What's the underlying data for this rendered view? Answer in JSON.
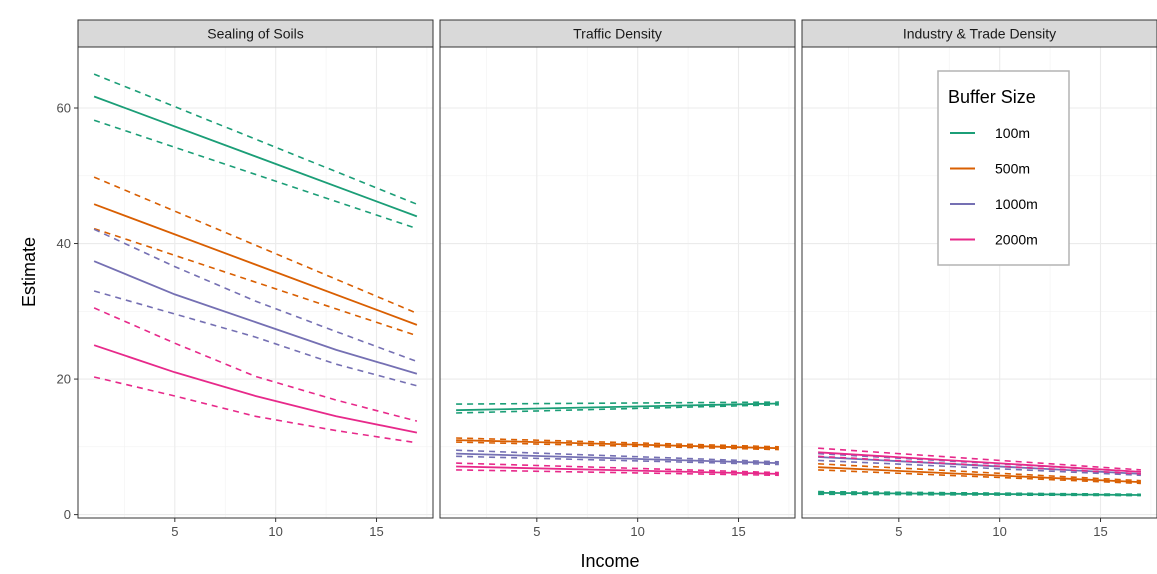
{
  "chart_data": {
    "type": "line",
    "xlabel": "Income",
    "ylabel": "Estimate",
    "xlim": [
      0.2,
      17.8
    ],
    "ylim": [
      -0.5,
      69
    ],
    "x_ticks": [
      5,
      10,
      15
    ],
    "y_ticks": [
      0,
      20,
      40,
      60
    ],
    "grid": true,
    "legend": {
      "title": "Buffer Size",
      "placement": "inside top-right of third panel",
      "entries": [
        "100m",
        "500m",
        "1000m",
        "2000m"
      ]
    },
    "colors": {
      "100m": "#1b9e77",
      "500m": "#d95f02",
      "1000m": "#7570b3",
      "2000m": "#e7298a"
    },
    "panels": [
      {
        "title": "Sealing of Soils",
        "series": [
          {
            "name": "100m",
            "x": [
              1,
              17
            ],
            "estimate": [
              61.7,
              44.0
            ],
            "lower": [
              58.2,
              42.2
            ],
            "upper": [
              65.0,
              45.8
            ]
          },
          {
            "name": "500m",
            "x": [
              1,
              17
            ],
            "estimate": [
              45.8,
              28.0
            ],
            "lower": [
              42.2,
              26.4
            ],
            "upper": [
              49.8,
              29.7
            ]
          },
          {
            "name": "1000m",
            "x": [
              1,
              5,
              9,
              13,
              17
            ],
            "estimate": [
              37.4,
              32.5,
              28.4,
              24.3,
              20.8
            ],
            "lower": [
              33.0,
              29.6,
              26.2,
              22.2,
              19.0
            ],
            "upper": [
              42.1,
              36.6,
              31.5,
              27.0,
              22.6
            ]
          },
          {
            "name": "2000m",
            "x": [
              1,
              5,
              9,
              13,
              17
            ],
            "estimate": [
              25.0,
              21.0,
              17.5,
              14.5,
              12.1
            ],
            "lower": [
              20.3,
              17.5,
              14.5,
              12.4,
              10.6
            ],
            "upper": [
              30.5,
              25.3,
              20.4,
              16.9,
              13.8
            ]
          }
        ]
      },
      {
        "title": "Traffic Density",
        "series": [
          {
            "name": "100m",
            "x": [
              1,
              17
            ],
            "estimate": [
              15.4,
              16.4
            ],
            "lower": [
              15.0,
              16.2
            ],
            "upper": [
              16.3,
              16.6
            ]
          },
          {
            "name": "500m",
            "x": [
              1,
              17
            ],
            "estimate": [
              11.0,
              9.8
            ],
            "lower": [
              10.7,
              9.6
            ],
            "upper": [
              11.3,
              10.0
            ]
          },
          {
            "name": "1000m",
            "x": [
              1,
              17
            ],
            "estimate": [
              9.0,
              7.6
            ],
            "lower": [
              8.6,
              7.4
            ],
            "upper": [
              9.5,
              7.8
            ]
          },
          {
            "name": "2000m",
            "x": [
              1,
              17
            ],
            "estimate": [
              7.1,
              6.0
            ],
            "lower": [
              6.6,
              5.8
            ],
            "upper": [
              7.6,
              6.2
            ]
          }
        ]
      },
      {
        "title": "Industry & Trade Density",
        "series": [
          {
            "name": "100m",
            "x": [
              1,
              17
            ],
            "estimate": [
              3.2,
              2.9
            ],
            "lower": [
              3.0,
              2.8
            ],
            "upper": [
              3.4,
              3.0
            ]
          },
          {
            "name": "500m",
            "x": [
              1,
              17
            ],
            "estimate": [
              7.0,
              4.8
            ],
            "lower": [
              6.6,
              4.6
            ],
            "upper": [
              7.5,
              5.0
            ]
          },
          {
            "name": "1000m",
            "x": [
              1,
              17
            ],
            "estimate": [
              8.5,
              6.0
            ],
            "lower": [
              8.0,
              5.8
            ],
            "upper": [
              9.0,
              6.3
            ]
          },
          {
            "name": "2000m",
            "x": [
              1,
              17
            ],
            "estimate": [
              9.2,
              6.3
            ],
            "lower": [
              8.6,
              6.0
            ],
            "upper": [
              9.8,
              6.6
            ]
          }
        ]
      }
    ]
  }
}
